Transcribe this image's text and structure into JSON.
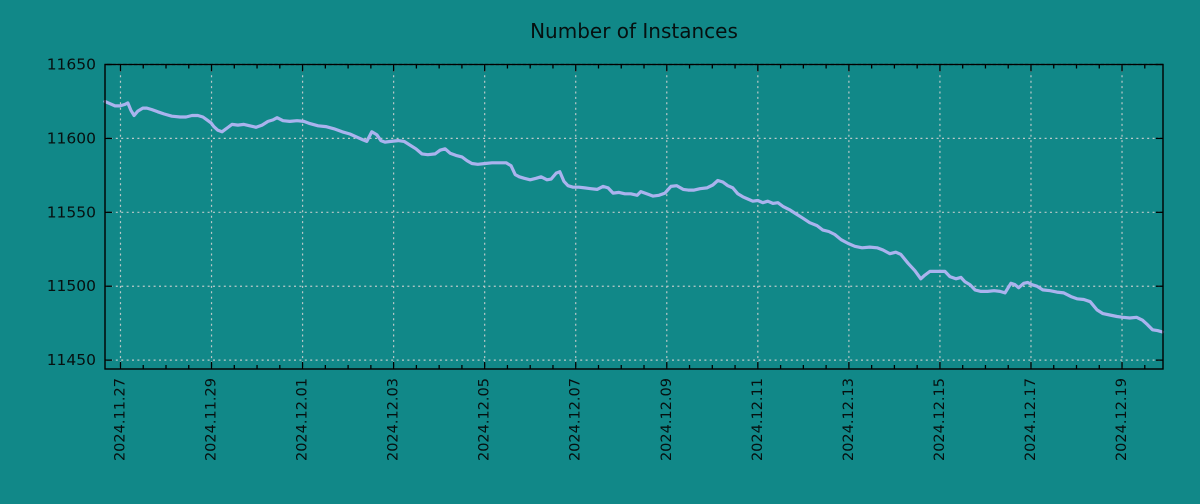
{
  "title": "Number of Instances",
  "colors": {
    "background": "#118888",
    "line": "#aab3ee",
    "grid": "#bcc9c9",
    "axis": "#000000",
    "text": "#061010"
  },
  "chart_data": {
    "type": "line",
    "title": "Number of Instances",
    "series_name": "instances",
    "x_unit": "days since 2024-11-27 00:00",
    "grid": true,
    "legend": "none",
    "x_range_days": [
      -0.34,
      22.9
    ],
    "y_range": [
      11444,
      11650
    ],
    "y_ticks": [
      11450,
      11500,
      11550,
      11600,
      11650
    ],
    "x_minor_tick_days": 0.5,
    "x_ticks": [
      {
        "day": 0,
        "label": "2024.11.27"
      },
      {
        "day": 2,
        "label": "2024.11.29"
      },
      {
        "day": 4,
        "label": "2024.12.01"
      },
      {
        "day": 6,
        "label": "2024.12.03"
      },
      {
        "day": 8,
        "label": "2024.12.05"
      },
      {
        "day": 10,
        "label": "2024.12.07"
      },
      {
        "day": 12,
        "label": "2024.12.09"
      },
      {
        "day": 14,
        "label": "2024.12.11"
      },
      {
        "day": 16,
        "label": "2024.12.13"
      },
      {
        "day": 18,
        "label": "2024.12.15"
      },
      {
        "day": 20,
        "label": "2024.12.17"
      },
      {
        "day": 22,
        "label": "2024.12.19"
      }
    ],
    "points": [
      [
        -0.34,
        11625
      ],
      [
        -0.23,
        11623.5
      ],
      [
        -0.12,
        11622
      ],
      [
        -0.01,
        11622
      ],
      [
        0.1,
        11623
      ],
      [
        0.16,
        11624
      ],
      [
        0.23,
        11619
      ],
      [
        0.3,
        11615.5
      ],
      [
        0.38,
        11618.5
      ],
      [
        0.49,
        11620.5
      ],
      [
        0.58,
        11620.5
      ],
      [
        0.69,
        11619.5
      ],
      [
        0.82,
        11618
      ],
      [
        0.96,
        11616.5
      ],
      [
        1.13,
        11615
      ],
      [
        1.31,
        11614.5
      ],
      [
        1.44,
        11614.5
      ],
      [
        1.57,
        11615.5
      ],
      [
        1.7,
        11615.5
      ],
      [
        1.81,
        11614.5
      ],
      [
        1.9,
        11612.5
      ],
      [
        1.99,
        11610.5
      ],
      [
        2.05,
        11608
      ],
      [
        2.14,
        11605.5
      ],
      [
        2.23,
        11604.5
      ],
      [
        2.34,
        11607
      ],
      [
        2.45,
        11609.5
      ],
      [
        2.58,
        11609
      ],
      [
        2.71,
        11609.5
      ],
      [
        2.84,
        11608.5
      ],
      [
        2.98,
        11607.5
      ],
      [
        3.11,
        11609
      ],
      [
        3.24,
        11611.5
      ],
      [
        3.35,
        11612.5
      ],
      [
        3.44,
        11614
      ],
      [
        3.57,
        11612
      ],
      [
        3.72,
        11611.5
      ],
      [
        3.88,
        11612
      ],
      [
        4.03,
        11611.5
      ],
      [
        4.16,
        11610
      ],
      [
        4.34,
        11608.5
      ],
      [
        4.51,
        11608
      ],
      [
        4.69,
        11606.5
      ],
      [
        4.87,
        11604.5
      ],
      [
        5.04,
        11603
      ],
      [
        5.22,
        11600.5
      ],
      [
        5.33,
        11599
      ],
      [
        5.41,
        11598
      ],
      [
        5.52,
        11604.5
      ],
      [
        5.63,
        11602.5
      ],
      [
        5.72,
        11598.5
      ],
      [
        5.81,
        11597.5
      ],
      [
        5.94,
        11598
      ],
      [
        6.1,
        11598.5
      ],
      [
        6.23,
        11598
      ],
      [
        6.36,
        11595.5
      ],
      [
        6.49,
        11593
      ],
      [
        6.62,
        11589.5
      ],
      [
        6.75,
        11589
      ],
      [
        6.91,
        11589.5
      ],
      [
        7.02,
        11592
      ],
      [
        7.13,
        11593
      ],
      [
        7.24,
        11590
      ],
      [
        7.37,
        11588.5
      ],
      [
        7.5,
        11587.5
      ],
      [
        7.61,
        11585
      ],
      [
        7.72,
        11583
      ],
      [
        7.85,
        11582.5
      ],
      [
        8.01,
        11583
      ],
      [
        8.16,
        11583.5
      ],
      [
        8.32,
        11583.5
      ],
      [
        8.47,
        11583.5
      ],
      [
        8.58,
        11581.5
      ],
      [
        8.67,
        11575.5
      ],
      [
        8.76,
        11574
      ],
      [
        8.87,
        11573
      ],
      [
        9.0,
        11572
      ],
      [
        9.13,
        11573
      ],
      [
        9.24,
        11574
      ],
      [
        9.37,
        11572
      ],
      [
        9.46,
        11572.5
      ],
      [
        9.57,
        11576.5
      ],
      [
        9.65,
        11577.5
      ],
      [
        9.74,
        11571
      ],
      [
        9.83,
        11568
      ],
      [
        9.94,
        11567
      ],
      [
        10.07,
        11567
      ],
      [
        10.2,
        11566.5
      ],
      [
        10.33,
        11566
      ],
      [
        10.47,
        11565.5
      ],
      [
        10.6,
        11567.5
      ],
      [
        10.71,
        11566.5
      ],
      [
        10.82,
        11563
      ],
      [
        10.95,
        11563.5
      ],
      [
        11.08,
        11562.5
      ],
      [
        11.21,
        11562.5
      ],
      [
        11.35,
        11561.5
      ],
      [
        11.43,
        11564
      ],
      [
        11.56,
        11562.5
      ],
      [
        11.7,
        11561
      ],
      [
        11.83,
        11561.5
      ],
      [
        11.96,
        11563
      ],
      [
        12.09,
        11567.5
      ],
      [
        12.22,
        11568
      ],
      [
        12.36,
        11565.5
      ],
      [
        12.47,
        11565
      ],
      [
        12.6,
        11565
      ],
      [
        12.73,
        11566
      ],
      [
        12.88,
        11566.5
      ],
      [
        13.01,
        11568.5
      ],
      [
        13.12,
        11571.5
      ],
      [
        13.23,
        11570.5
      ],
      [
        13.34,
        11568
      ],
      [
        13.45,
        11566.5
      ],
      [
        13.56,
        11562.5
      ],
      [
        13.67,
        11560.5
      ],
      [
        13.78,
        11559
      ],
      [
        13.89,
        11557.5
      ],
      [
        14.0,
        11558
      ],
      [
        14.11,
        11556.5
      ],
      [
        14.22,
        11557.5
      ],
      [
        14.33,
        11556
      ],
      [
        14.44,
        11556.5
      ],
      [
        14.55,
        11554
      ],
      [
        14.71,
        11551.5
      ],
      [
        14.86,
        11548.5
      ],
      [
        14.99,
        11546
      ],
      [
        15.14,
        11543
      ],
      [
        15.3,
        11541
      ],
      [
        15.43,
        11538
      ],
      [
        15.56,
        11537
      ],
      [
        15.69,
        11535
      ],
      [
        15.83,
        11531.5
      ],
      [
        15.98,
        11529
      ],
      [
        16.13,
        11527
      ],
      [
        16.29,
        11526
      ],
      [
        16.46,
        11526.5
      ],
      [
        16.62,
        11526
      ],
      [
        16.75,
        11524.5
      ],
      [
        16.9,
        11522
      ],
      [
        17.03,
        11523
      ],
      [
        17.14,
        11521.5
      ],
      [
        17.3,
        11515.5
      ],
      [
        17.45,
        11510.5
      ],
      [
        17.58,
        11505
      ],
      [
        17.67,
        11507.5
      ],
      [
        17.78,
        11510
      ],
      [
        17.96,
        11510
      ],
      [
        18.11,
        11510
      ],
      [
        18.22,
        11506.5
      ],
      [
        18.35,
        11505
      ],
      [
        18.46,
        11506
      ],
      [
        18.55,
        11503
      ],
      [
        18.66,
        11501
      ],
      [
        18.77,
        11497.5
      ],
      [
        18.9,
        11496.5
      ],
      [
        19.05,
        11496.5
      ],
      [
        19.19,
        11497
      ],
      [
        19.32,
        11496.5
      ],
      [
        19.43,
        11495.5
      ],
      [
        19.56,
        11502
      ],
      [
        19.65,
        11501
      ],
      [
        19.73,
        11499
      ],
      [
        19.84,
        11502
      ],
      [
        19.93,
        11502.5
      ],
      [
        20.02,
        11501
      ],
      [
        20.13,
        11500
      ],
      [
        20.26,
        11497.5
      ],
      [
        20.42,
        11497
      ],
      [
        20.57,
        11496
      ],
      [
        20.72,
        11495.5
      ],
      [
        20.88,
        11493
      ],
      [
        21.01,
        11491.5
      ],
      [
        21.16,
        11491
      ],
      [
        21.3,
        11489.5
      ],
      [
        21.45,
        11484
      ],
      [
        21.58,
        11481.5
      ],
      [
        21.73,
        11480.5
      ],
      [
        21.89,
        11479.5
      ],
      [
        22.02,
        11479
      ],
      [
        22.17,
        11478.5
      ],
      [
        22.32,
        11479
      ],
      [
        22.45,
        11477
      ],
      [
        22.56,
        11474
      ],
      [
        22.67,
        11470.5
      ],
      [
        22.78,
        11470
      ],
      [
        22.89,
        11469
      ]
    ]
  }
}
